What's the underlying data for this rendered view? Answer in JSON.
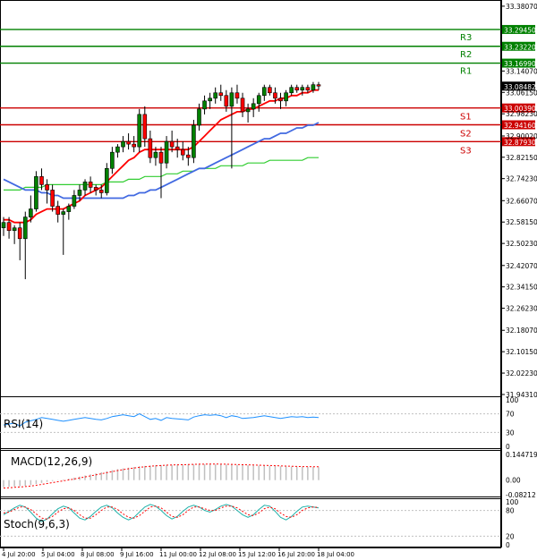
{
  "colors": {
    "background": "#ffffff",
    "frame": "#000000",
    "bull": "#008000",
    "bear": "#ff0000",
    "wick": "#000000",
    "ma_fast": "#ff0000",
    "ma_mid": "#4169e1",
    "ma_slow": "#32cd32",
    "resistance": "#008000",
    "support": "#cc0000",
    "rsi_line": "#1e90ff",
    "macd_hist": "#c0c0c0",
    "macd_signal": "#ff0000",
    "stoch_main": "#20b2aa",
    "stoch_signal": "#ff0000",
    "price_tag": "#000000"
  },
  "chart_data": {
    "type": "candlestick",
    "price_axis": {
      "ticks": [
        "33.38070",
        "33.29450",
        "33.23220",
        "33.16990",
        "33.14070",
        "33.06150",
        "33.00390",
        "32.98230",
        "32.94160",
        "32.90020",
        "32.87930",
        "32.82150",
        "32.74230",
        "32.66070",
        "32.58150",
        "32.50230",
        "32.42070",
        "32.34150",
        "32.26230",
        "32.18070",
        "32.10150",
        "32.02230",
        "31.94310"
      ],
      "ylim": [
        31.943,
        33.397
      ]
    },
    "time_axis": {
      "labels": [
        "4 Jul 20:00",
        "5 Jul 04:00",
        "8 Jul 08:00",
        "9 Jul 16:00",
        "11 Jul 00:00",
        "12 Jul 08:00",
        "15 Jul 12:00",
        "16 Jul 20:00",
        "18 Jul 04:00"
      ]
    },
    "current_price": "33.08482",
    "levels": [
      {
        "name": "R3",
        "value": 33.2945,
        "label": "33.29450",
        "kind": "resistance"
      },
      {
        "name": "R2",
        "value": 33.2322,
        "label": "33.23220",
        "kind": "resistance"
      },
      {
        "name": "R1",
        "value": 33.1699,
        "label": "33.16990",
        "kind": "resistance"
      },
      {
        "name": "S1",
        "value": 33.0039,
        "label": "33.00390",
        "kind": "support"
      },
      {
        "name": "S2",
        "value": 32.9416,
        "label": "32.94160",
        "kind": "support"
      },
      {
        "name": "S3",
        "value": 32.8793,
        "label": "32.87930",
        "kind": "support"
      }
    ],
    "candles": [
      [
        32.56,
        32.6,
        32.53,
        32.58
      ],
      [
        32.58,
        32.6,
        32.52,
        32.55
      ],
      [
        32.55,
        32.57,
        32.5,
        32.56
      ],
      [
        32.56,
        32.58,
        32.44,
        32.52
      ],
      [
        32.52,
        32.62,
        32.37,
        32.6
      ],
      [
        32.6,
        32.68,
        32.58,
        32.63
      ],
      [
        32.63,
        32.77,
        32.62,
        32.75
      ],
      [
        32.75,
        32.78,
        32.7,
        32.72
      ],
      [
        32.72,
        32.74,
        32.65,
        32.7
      ],
      [
        32.7,
        32.72,
        32.62,
        32.64
      ],
      [
        32.64,
        32.66,
        32.58,
        32.61
      ],
      [
        32.61,
        32.63,
        32.46,
        32.62
      ],
      [
        32.62,
        32.65,
        32.59,
        32.64
      ],
      [
        32.64,
        32.7,
        32.63,
        32.68
      ],
      [
        32.68,
        32.72,
        32.66,
        32.7
      ],
      [
        32.7,
        32.74,
        32.68,
        32.73
      ],
      [
        32.73,
        32.75,
        32.69,
        32.71
      ],
      [
        32.71,
        32.72,
        32.68,
        32.7
      ],
      [
        32.7,
        32.72,
        32.67,
        32.69
      ],
      [
        32.69,
        32.8,
        32.68,
        32.78
      ],
      [
        32.78,
        32.86,
        32.76,
        32.84
      ],
      [
        32.84,
        32.87,
        32.82,
        32.86
      ],
      [
        32.86,
        32.9,
        32.84,
        32.88
      ],
      [
        32.88,
        32.91,
        32.85,
        32.87
      ],
      [
        32.87,
        32.9,
        32.84,
        32.86
      ],
      [
        32.86,
        33.0,
        32.84,
        32.98
      ],
      [
        32.98,
        33.01,
        32.86,
        32.89
      ],
      [
        32.89,
        32.92,
        32.8,
        32.82
      ],
      [
        32.82,
        32.86,
        32.79,
        32.84
      ],
      [
        32.84,
        32.86,
        32.67,
        32.8
      ],
      [
        32.8,
        32.9,
        32.78,
        32.88
      ],
      [
        32.88,
        32.92,
        32.84,
        32.86
      ],
      [
        32.86,
        32.89,
        32.82,
        32.85
      ],
      [
        32.85,
        32.88,
        32.81,
        32.83
      ],
      [
        32.83,
        32.86,
        32.79,
        32.82
      ],
      [
        32.82,
        32.96,
        32.8,
        32.94
      ],
      [
        32.94,
        33.02,
        32.92,
        33.0
      ],
      [
        33.0,
        33.05,
        32.98,
        33.03
      ],
      [
        33.03,
        33.06,
        33.0,
        33.04
      ],
      [
        33.04,
        33.08,
        33.02,
        33.06
      ],
      [
        33.06,
        33.09,
        33.03,
        33.05
      ],
      [
        33.05,
        33.07,
        32.99,
        33.01
      ],
      [
        33.01,
        33.08,
        32.78,
        33.06
      ],
      [
        33.06,
        33.09,
        33.02,
        33.04
      ],
      [
        33.04,
        33.06,
        32.97,
        32.99
      ],
      [
        32.99,
        33.02,
        32.95,
        33.0
      ],
      [
        33.0,
        33.04,
        32.97,
        33.02
      ],
      [
        33.02,
        33.06,
        32.99,
        33.05
      ],
      [
        33.05,
        33.09,
        33.03,
        33.08
      ],
      [
        33.08,
        33.09,
        33.05,
        33.06
      ],
      [
        33.06,
        33.08,
        33.02,
        33.04
      ],
      [
        33.04,
        33.06,
        33.0,
        33.03
      ],
      [
        33.03,
        33.07,
        33.01,
        33.06
      ],
      [
        33.06,
        33.09,
        33.05,
        33.08
      ],
      [
        33.08,
        33.09,
        33.06,
        33.07
      ],
      [
        33.07,
        33.09,
        33.05,
        33.08
      ],
      [
        33.08,
        33.09,
        33.06,
        33.07
      ],
      [
        33.07,
        33.1,
        33.06,
        33.09
      ],
      [
        33.09,
        33.1,
        33.07,
        33.085
      ]
    ],
    "ma_fast": [
      32.59,
      32.59,
      32.58,
      32.58,
      32.58,
      32.59,
      32.61,
      32.62,
      32.63,
      32.63,
      32.63,
      32.63,
      32.64,
      32.65,
      32.66,
      32.68,
      32.69,
      32.7,
      32.71,
      32.73,
      32.75,
      32.77,
      32.79,
      32.81,
      32.82,
      32.84,
      32.85,
      32.85,
      32.85,
      32.85,
      32.85,
      32.85,
      32.85,
      32.85,
      32.85,
      32.86,
      32.88,
      32.9,
      32.92,
      32.94,
      32.96,
      32.97,
      32.98,
      32.99,
      32.99,
      33.0,
      33.0,
      33.01,
      33.02,
      33.03,
      33.03,
      33.04,
      33.04,
      33.05,
      33.05,
      33.06,
      33.06,
      33.07,
      33.07
    ],
    "ma_mid": [
      32.74,
      32.73,
      32.72,
      32.71,
      32.7,
      32.7,
      32.7,
      32.69,
      32.69,
      32.68,
      32.68,
      32.67,
      32.67,
      32.67,
      32.67,
      32.67,
      32.67,
      32.67,
      32.67,
      32.67,
      32.67,
      32.67,
      32.67,
      32.68,
      32.68,
      32.69,
      32.69,
      32.7,
      32.7,
      32.71,
      32.72,
      32.73,
      32.74,
      32.75,
      32.76,
      32.77,
      32.78,
      32.78,
      32.79,
      32.8,
      32.81,
      32.82,
      32.83,
      32.84,
      32.85,
      32.86,
      32.87,
      32.88,
      32.89,
      32.89,
      32.9,
      32.91,
      32.91,
      32.92,
      32.93,
      32.93,
      32.94,
      32.94,
      32.95
    ],
    "ma_slow": [
      32.7,
      32.7,
      32.7,
      32.7,
      32.71,
      32.71,
      32.71,
      32.71,
      32.72,
      32.72,
      32.72,
      32.72,
      32.72,
      32.72,
      32.72,
      32.72,
      32.72,
      32.72,
      32.72,
      32.73,
      32.73,
      32.73,
      32.73,
      32.74,
      32.74,
      32.74,
      32.75,
      32.75,
      32.75,
      32.75,
      32.76,
      32.76,
      32.76,
      32.77,
      32.77,
      32.77,
      32.78,
      32.78,
      32.78,
      32.78,
      32.79,
      32.79,
      32.79,
      32.79,
      32.79,
      32.8,
      32.8,
      32.8,
      32.8,
      32.81,
      32.81,
      32.81,
      32.81,
      32.81,
      32.81,
      32.81,
      32.82,
      32.82,
      32.82
    ],
    "rsi": {
      "label": "RSI(14)",
      "ticks": [
        "100",
        "70",
        "30",
        "0"
      ],
      "values": [
        46,
        48,
        50,
        44,
        52,
        55,
        58,
        62,
        60,
        58,
        56,
        54,
        56,
        58,
        60,
        62,
        60,
        58,
        57,
        60,
        64,
        66,
        68,
        66,
        64,
        70,
        64,
        58,
        60,
        56,
        62,
        60,
        59,
        58,
        57,
        63,
        66,
        68,
        67,
        68,
        66,
        62,
        66,
        64,
        60,
        61,
        62,
        64,
        66,
        64,
        62,
        60,
        62,
        64,
        63,
        64,
        62,
        63,
        62
      ]
    },
    "macd": {
      "label": "MACD(12,26,9)",
      "ticks": [
        "0.144719",
        "0.00",
        "-0.08212"
      ],
      "hist": [
        -0.04,
        -0.038,
        -0.036,
        -0.035,
        -0.032,
        -0.028,
        -0.022,
        -0.016,
        -0.01,
        -0.005,
        -0.001,
        0.003,
        0.008,
        0.014,
        0.02,
        0.026,
        0.032,
        0.038,
        0.044,
        0.05,
        0.056,
        0.062,
        0.066,
        0.07,
        0.074,
        0.078,
        0.08,
        0.082,
        0.084,
        0.085,
        0.086,
        0.086,
        0.087,
        0.087,
        0.088,
        0.089,
        0.09,
        0.09,
        0.09,
        0.089,
        0.088,
        0.088,
        0.087,
        0.086,
        0.085,
        0.084,
        0.083,
        0.082,
        0.081,
        0.08,
        0.079,
        0.078,
        0.077,
        0.076,
        0.075,
        0.075,
        0.074,
        0.074,
        0.073
      ],
      "signal": [
        -0.045,
        -0.043,
        -0.041,
        -0.039,
        -0.036,
        -0.033,
        -0.029,
        -0.024,
        -0.019,
        -0.014,
        -0.009,
        -0.004,
        0.001,
        0.006,
        0.012,
        0.018,
        0.024,
        0.03,
        0.036,
        0.042,
        0.048,
        0.054,
        0.059,
        0.064,
        0.068,
        0.072,
        0.075,
        0.078,
        0.08,
        0.082,
        0.084,
        0.085,
        0.086,
        0.087,
        0.088,
        0.089,
        0.09,
        0.09,
        0.091,
        0.091,
        0.09,
        0.09,
        0.089,
        0.088,
        0.087,
        0.086,
        0.085,
        0.084,
        0.083,
        0.082,
        0.081,
        0.08,
        0.079,
        0.078,
        0.077,
        0.076,
        0.076,
        0.075,
        0.075
      ]
    },
    "stoch": {
      "label": "Stoch(9,6,3)",
      "ticks": [
        "100",
        "80",
        "20",
        "0"
      ],
      "main": [
        70,
        78,
        86,
        92,
        88,
        76,
        62,
        54,
        60,
        72,
        84,
        90,
        86,
        74,
        62,
        58,
        66,
        78,
        88,
        92,
        86,
        74,
        64,
        58,
        64,
        76,
        88,
        94,
        90,
        80,
        68,
        60,
        66,
        78,
        88,
        92,
        88,
        80,
        76,
        82,
        90,
        94,
        90,
        80,
        70,
        64,
        70,
        82,
        92,
        90,
        78,
        64,
        58,
        66,
        78,
        88,
        90,
        88,
        86
      ],
      "signal": [
        74,
        76,
        82,
        88,
        88,
        82,
        72,
        62,
        60,
        66,
        76,
        84,
        86,
        80,
        70,
        62,
        62,
        70,
        80,
        88,
        88,
        82,
        72,
        64,
        62,
        68,
        78,
        88,
        90,
        86,
        76,
        66,
        64,
        70,
        80,
        88,
        88,
        84,
        80,
        80,
        86,
        90,
        90,
        86,
        78,
        70,
        68,
        74,
        84,
        88,
        84,
        74,
        66,
        64,
        70,
        80,
        86,
        88,
        87
      ]
    }
  }
}
